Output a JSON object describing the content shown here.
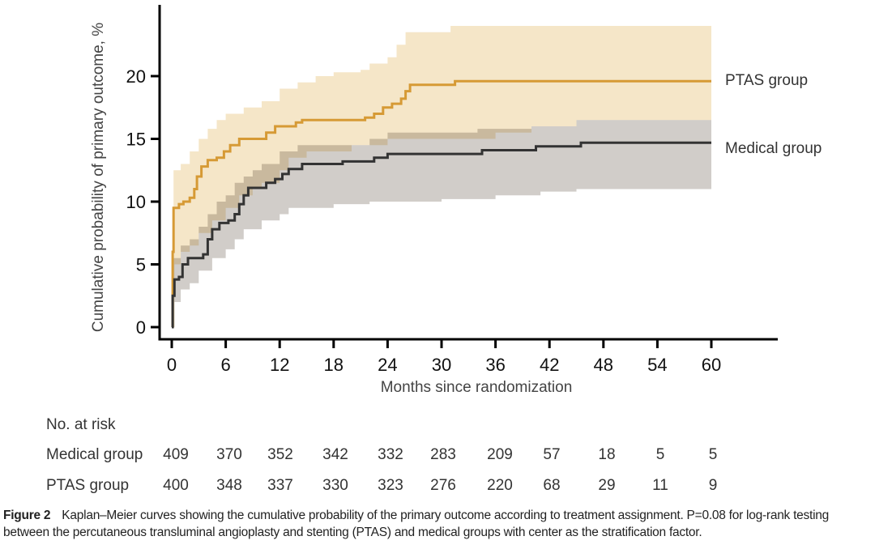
{
  "chart_data": {
    "type": "line",
    "subtype": "kaplan-meier step curves with confidence bands",
    "title": "",
    "xlabel": "Months since randomization",
    "ylabel": "Cumulative probability of primary outcome, %",
    "xlim": [
      0,
      68
    ],
    "ylim": [
      0,
      25
    ],
    "xticks": [
      0,
      6,
      12,
      18,
      24,
      30,
      36,
      42,
      48,
      54,
      60
    ],
    "yticks": [
      0,
      5,
      10,
      15,
      20
    ],
    "grid": false,
    "legend": "right (inline labels at curve ends)",
    "series": [
      {
        "name": "PTAS group",
        "color": "#d69a35",
        "band_color": "#f5e6c8",
        "points": [
          [
            0,
            0
          ],
          [
            0.1,
            6
          ],
          [
            0.2,
            9.5
          ],
          [
            0.8,
            9.8
          ],
          [
            1.3,
            10.0
          ],
          [
            2.0,
            10.3
          ],
          [
            2.5,
            11.0
          ],
          [
            2.8,
            12.0
          ],
          [
            3.3,
            12.8
          ],
          [
            4.0,
            13.3
          ],
          [
            5.0,
            13.5
          ],
          [
            5.8,
            14.0
          ],
          [
            6.5,
            14.5
          ],
          [
            7.5,
            15.0
          ],
          [
            10.5,
            15.5
          ],
          [
            11.5,
            16.0
          ],
          [
            13.8,
            16.3
          ],
          [
            14.5,
            16.5
          ],
          [
            21.5,
            16.7
          ],
          [
            22.5,
            17.0
          ],
          [
            23.5,
            17.5
          ],
          [
            24.5,
            17.8
          ],
          [
            25.5,
            18.2
          ],
          [
            26.0,
            18.8
          ],
          [
            26.5,
            19.3
          ],
          [
            31.5,
            19.6
          ],
          [
            60,
            19.6
          ]
        ],
        "ci_lower": [
          [
            0,
            0
          ],
          [
            0.3,
            5
          ],
          [
            1,
            6
          ],
          [
            2,
            6.5
          ],
          [
            3,
            7.5
          ],
          [
            4.5,
            8.5
          ],
          [
            6,
            9.5
          ],
          [
            7.5,
            10.5
          ],
          [
            9,
            11.0
          ],
          [
            10,
            11.5
          ],
          [
            12,
            12.5
          ],
          [
            13,
            13.5
          ],
          [
            15,
            14.0
          ],
          [
            20,
            14.5
          ],
          [
            24,
            15.0
          ],
          [
            30,
            15.0
          ],
          [
            36,
            15.5
          ],
          [
            40,
            16.0
          ],
          [
            45,
            16.5
          ],
          [
            60,
            16.5
          ]
        ],
        "ci_upper": [
          [
            0,
            0
          ],
          [
            0.2,
            12.5
          ],
          [
            1,
            13.0
          ],
          [
            2,
            14.0
          ],
          [
            3,
            15.0
          ],
          [
            4,
            15.8
          ],
          [
            5,
            16.5
          ],
          [
            6,
            17.0
          ],
          [
            8,
            17.5
          ],
          [
            10,
            18.0
          ],
          [
            12,
            19.0
          ],
          [
            14,
            19.5
          ],
          [
            16,
            20.0
          ],
          [
            18,
            20.3
          ],
          [
            21,
            20.5
          ],
          [
            22,
            21.0
          ],
          [
            24,
            21.5
          ],
          [
            25,
            22.5
          ],
          [
            26,
            23.5
          ],
          [
            31,
            24.0
          ],
          [
            60,
            24.0
          ]
        ]
      },
      {
        "name": "Medical group",
        "color": "#333333",
        "band_color": "#c9c4bf",
        "points": [
          [
            0,
            0
          ],
          [
            0.1,
            2.5
          ],
          [
            0.3,
            3.8
          ],
          [
            0.8,
            4.0
          ],
          [
            1.2,
            5.0
          ],
          [
            1.8,
            5.5
          ],
          [
            3.5,
            5.8
          ],
          [
            4.0,
            7.0
          ],
          [
            4.5,
            7.8
          ],
          [
            5.3,
            8.3
          ],
          [
            6.3,
            8.5
          ],
          [
            7.0,
            9.0
          ],
          [
            7.5,
            9.8
          ],
          [
            8.0,
            10.5
          ],
          [
            8.5,
            11.1
          ],
          [
            10.5,
            11.5
          ],
          [
            11.5,
            11.8
          ],
          [
            12.3,
            12.2
          ],
          [
            13.0,
            12.6
          ],
          [
            14.5,
            13.0
          ],
          [
            19.0,
            13.2
          ],
          [
            22.5,
            13.5
          ],
          [
            24.0,
            13.8
          ],
          [
            34.5,
            14.1
          ],
          [
            40.5,
            14.4
          ],
          [
            45.5,
            14.7
          ],
          [
            60,
            14.7
          ]
        ],
        "ci_lower": [
          [
            0,
            0
          ],
          [
            0.3,
            2
          ],
          [
            1,
            3
          ],
          [
            2,
            3.5
          ],
          [
            3,
            4.5
          ],
          [
            4.5,
            5.5
          ],
          [
            6,
            6.2
          ],
          [
            7,
            7.0
          ],
          [
            8,
            7.8
          ],
          [
            10,
            8.5
          ],
          [
            12,
            9.0
          ],
          [
            13,
            9.5
          ],
          [
            18,
            9.8
          ],
          [
            22,
            10.0
          ],
          [
            30,
            10.2
          ],
          [
            36,
            10.5
          ],
          [
            41,
            10.8
          ],
          [
            45,
            11.0
          ],
          [
            60,
            11.0
          ]
        ],
        "ci_upper": [
          [
            0,
            0
          ],
          [
            0.2,
            5.5
          ],
          [
            1,
            6.5
          ],
          [
            2,
            7.0
          ],
          [
            3,
            8.0
          ],
          [
            4,
            9.0
          ],
          [
            5,
            10.0
          ],
          [
            6,
            10.5
          ],
          [
            7,
            11.5
          ],
          [
            8,
            12.0
          ],
          [
            9,
            12.5
          ],
          [
            10,
            13.0
          ],
          [
            12,
            14.0
          ],
          [
            14,
            14.5
          ],
          [
            22,
            15.0
          ],
          [
            24,
            15.5
          ],
          [
            34,
            15.8
          ],
          [
            40,
            16.0
          ],
          [
            45,
            16.5
          ],
          [
            60,
            16.5
          ]
        ]
      }
    ],
    "at_risk": {
      "title": "No. at risk",
      "times": [
        0,
        6,
        12,
        18,
        24,
        30,
        36,
        42,
        48,
        54,
        60
      ],
      "rows": [
        {
          "name": "Medical group",
          "values": [
            409,
            370,
            352,
            342,
            332,
            283,
            209,
            57,
            18,
            5,
            5
          ]
        },
        {
          "name": "PTAS group",
          "values": [
            400,
            348,
            337,
            330,
            323,
            276,
            220,
            68,
            29,
            11,
            9
          ]
        }
      ]
    }
  },
  "caption": {
    "label": "Figure 2",
    "text": "Kaplan–Meier curves showing the cumulative probability of the primary outcome according to treatment assignment. P=0.08 for log-rank testing between the percutaneous transluminal angioplasty and stenting (PTAS) and medical groups with center as the stratification factor."
  }
}
